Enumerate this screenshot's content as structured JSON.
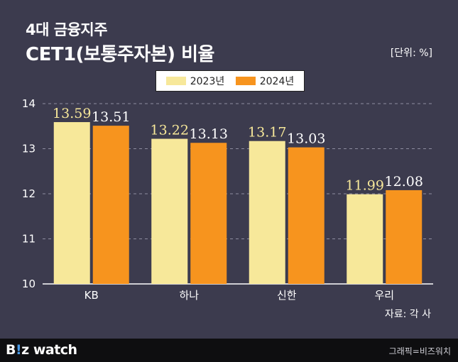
{
  "title_line1": "4대 금융지주",
  "title_line2": "CET1(보통주자본) 비율",
  "unit_label": "[단위: %]",
  "source_label": "자료: 각 사",
  "footer": {
    "logo_b": "B",
    "logo_accent": "!",
    "logo_rest": "z watch",
    "credit": "그래픽=비즈워치"
  },
  "colors": {
    "series_2023": "#f7e89a",
    "series_2024": "#f7941e",
    "label_2023": "#f7e89a",
    "label_2024": "#ffffff",
    "background": "#3c3b4e",
    "grid": "#8e8da0"
  },
  "chart_data": {
    "type": "bar",
    "categories": [
      "KB",
      "하나",
      "신한",
      "우리"
    ],
    "series": [
      {
        "name": "2023년",
        "values": [
          13.59,
          13.22,
          13.17,
          11.99
        ]
      },
      {
        "name": "2024년",
        "values": [
          13.51,
          13.13,
          13.03,
          12.08
        ]
      }
    ],
    "value_labels": [
      [
        "13.59",
        "13.22",
        "13.17",
        "11.99"
      ],
      [
        "13.51",
        "13.13",
        "13.03",
        "12.08"
      ]
    ],
    "y_ticks": [
      "10",
      "11",
      "12",
      "13",
      "14"
    ],
    "ylim": [
      10,
      14
    ],
    "grid": true,
    "legend_position": "top-center",
    "title": "CET1(보통주자본) 비율",
    "ylabel": "",
    "xlabel": ""
  }
}
